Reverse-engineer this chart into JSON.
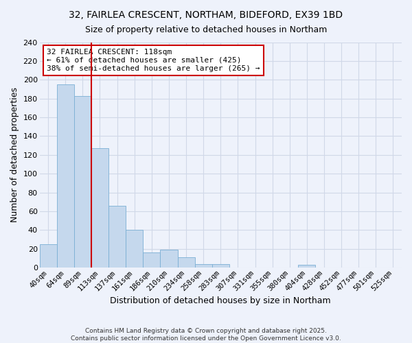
{
  "title": "32, FAIRLEA CRESCENT, NORTHAM, BIDEFORD, EX39 1BD",
  "subtitle": "Size of property relative to detached houses in Northam",
  "xlabel": "Distribution of detached houses by size in Northam",
  "ylabel": "Number of detached properties",
  "bar_color": "#c5d8ed",
  "bar_edgecolor": "#7aafd4",
  "background_color": "#eef2fb",
  "grid_color": "#d0d8e8",
  "categories": [
    "40sqm",
    "64sqm",
    "89sqm",
    "113sqm",
    "137sqm",
    "161sqm",
    "186sqm",
    "210sqm",
    "234sqm",
    "258sqm",
    "283sqm",
    "307sqm",
    "331sqm",
    "355sqm",
    "380sqm",
    "404sqm",
    "428sqm",
    "452sqm",
    "477sqm",
    "501sqm",
    "525sqm"
  ],
  "values": [
    25,
    195,
    183,
    127,
    66,
    40,
    16,
    19,
    11,
    4,
    4,
    0,
    0,
    0,
    0,
    3,
    0,
    0,
    0,
    0,
    0
  ],
  "ylim": [
    0,
    240
  ],
  "yticks": [
    0,
    20,
    40,
    60,
    80,
    100,
    120,
    140,
    160,
    180,
    200,
    220,
    240
  ],
  "vline_index": 3,
  "vline_color": "#cc0000",
  "annotation_title": "32 FAIRLEA CRESCENT: 118sqm",
  "annotation_line1": "← 61% of detached houses are smaller (425)",
  "annotation_line2": "38% of semi-detached houses are larger (265) →",
  "annotation_box_color": "#ffffff",
  "annotation_box_edgecolor": "#cc0000",
  "footer1": "Contains HM Land Registry data © Crown copyright and database right 2025.",
  "footer2": "Contains public sector information licensed under the Open Government Licence v3.0."
}
